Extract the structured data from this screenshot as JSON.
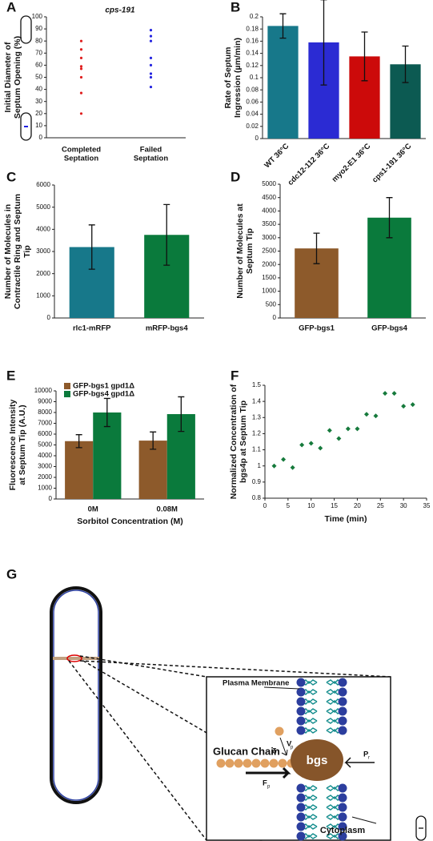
{
  "chart_data": [
    {
      "label": "A",
      "type": "scatter",
      "title": "cps-191",
      "y_label": "Initial Diameter of Septum Opening (%)",
      "categories": [
        "Completed Septation",
        "Failed Septation"
      ],
      "series": [
        {
          "color": "#e02020",
          "values": [
            80,
            73,
            66,
            59,
            57,
            50,
            37,
            20
          ]
        },
        {
          "color": "#2424e0",
          "values": [
            89,
            84,
            80,
            66,
            60,
            53,
            50,
            42
          ]
        }
      ],
      "ylim": [
        0,
        100
      ],
      "yticks": [
        0,
        10,
        20,
        30,
        40,
        50,
        60,
        70,
        80,
        90,
        100
      ]
    },
    {
      "label": "B",
      "type": "bar",
      "y_label": "Rate of Septum Ingression (µm/min)",
      "categories": [
        "WT 36°C",
        "cdc12-112 36°C",
        "myo2-E1 36°C",
        "cps1-191 36°C"
      ],
      "values": [
        0.185,
        0.158,
        0.135,
        0.122
      ],
      "errors": [
        0.02,
        0.07,
        0.04,
        0.03
      ],
      "colors": [
        "#17788a",
        "#2b2bd3",
        "#cc0a0a",
        "#0c5a52"
      ],
      "ylim": [
        0,
        0.2
      ],
      "yticks": [
        0,
        0.02,
        0.04,
        0.06,
        0.08,
        0.1,
        0.12,
        0.14,
        0.16,
        0.18,
        0.2
      ]
    },
    {
      "label": "C",
      "type": "bar",
      "y_label": "Number of Molecules in Contractile Ring and Septum Tip",
      "categories": [
        "rlc1-mRFP",
        "mRFP-bgs4"
      ],
      "values": [
        3200,
        3750
      ],
      "errors": [
        1000,
        1370
      ],
      "colors": [
        "#17788a",
        "#0a7a3c"
      ],
      "ylim": [
        0,
        6000
      ],
      "yticks": [
        0,
        1000,
        2000,
        3000,
        4000,
        5000,
        6000
      ]
    },
    {
      "label": "D",
      "type": "bar",
      "y_label": "Number of Molecules at Septum Tip",
      "categories": [
        "GFP-bgs1",
        "GFP-bgs4"
      ],
      "values": [
        2600,
        3750
      ],
      "errors": [
        570,
        750
      ],
      "colors": [
        "#8d5a2b",
        "#0a7a3c"
      ],
      "ylim": [
        0,
        5000
      ],
      "yticks": [
        0,
        500,
        1000,
        1500,
        2000,
        2500,
        3000,
        3500,
        4000,
        4500,
        5000
      ]
    },
    {
      "label": "E",
      "type": "bar",
      "y_label": "Fluorescence Intensity at Septum Tip (A.U.)",
      "x_label": "Sorbitol Concentration (M)",
      "categories": [
        "0M",
        "0.08M"
      ],
      "series": [
        {
          "name": "GFP-bgs1 gpd1Δ",
          "color": "#8d5a2b",
          "values": [
            5350,
            5400
          ],
          "errors": [
            600,
            800
          ]
        },
        {
          "name": "GFP-bgs4 gpd1Δ",
          "color": "#0a7a3c",
          "values": [
            8000,
            7850
          ],
          "errors": [
            1300,
            1600
          ]
        }
      ],
      "legend": "upper left",
      "ylim": [
        0,
        10000
      ],
      "yticks": [
        0,
        1000,
        2000,
        3000,
        4000,
        5000,
        6000,
        7000,
        8000,
        9000,
        10000
      ]
    },
    {
      "label": "F",
      "type": "scatter",
      "y_label": "Normalized Concentration of bgs4p at Septum Tip",
      "x_label": "Time (min)",
      "color": "#167a3c",
      "x": [
        2,
        4,
        6,
        8,
        10,
        12,
        14,
        16,
        18,
        20,
        22,
        24,
        26,
        28,
        30,
        32
      ],
      "values": [
        1.0,
        1.04,
        0.99,
        1.13,
        1.14,
        1.11,
        1.22,
        1.17,
        1.23,
        1.23,
        1.32,
        1.31,
        1.45,
        1.45,
        1.37,
        1.38
      ],
      "xlim": [
        0,
        35
      ],
      "xticks": [
        0,
        5,
        10,
        15,
        20,
        25,
        30,
        35
      ],
      "ylim": [
        0.8,
        1.5
      ],
      "yticks": [
        0.8,
        0.9,
        1,
        1.1,
        1.2,
        1.3,
        1.4,
        1.5
      ]
    }
  ],
  "diagram": {
    "label": "G",
    "plasma_membrane": "Plasma Membrane",
    "glucan_chain": "Glucan Chain",
    "bgs": "bgs",
    "cytoplasm": "Cytoplasm",
    "delta": "δ",
    "v": "V",
    "v_sub": "p",
    "p": "P",
    "p_sub": "r",
    "f": "F",
    "f_sub": "p"
  }
}
